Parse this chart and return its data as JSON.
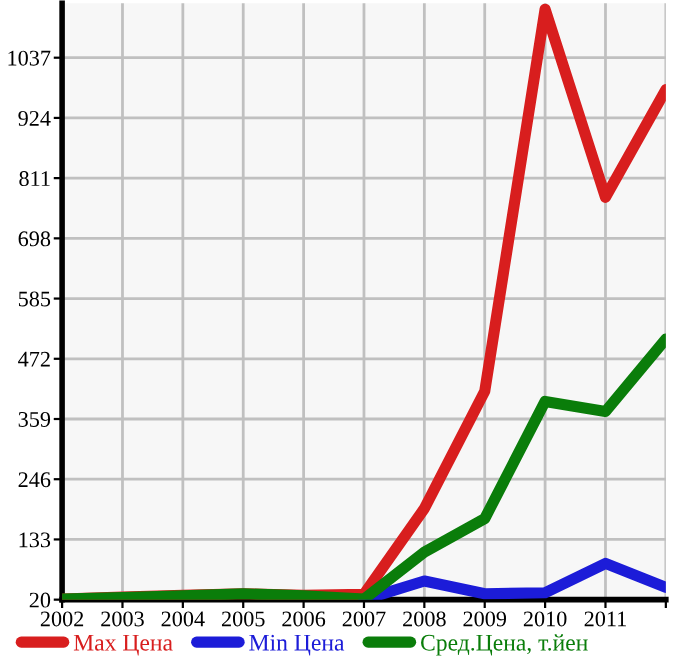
{
  "chart_data": {
    "type": "line",
    "x": [
      2002,
      2003,
      2004,
      2005,
      2006,
      2007,
      2008,
      2009,
      2010,
      2011,
      2012
    ],
    "series": [
      {
        "name": "Max Цена",
        "color": "#d81e1e",
        "values": [
          21,
          25,
          28,
          31,
          28,
          30,
          191,
          411,
          1128,
          775,
          977
        ]
      },
      {
        "name": "Min Цена",
        "color": "#1c1cd8",
        "values": [
          null,
          null,
          null,
          null,
          null,
          20,
          55,
          31,
          33,
          88,
          43
        ]
      },
      {
        "name": "Сред.Цена, т.йен",
        "color": "#0a7d0a",
        "values": [
          21,
          24,
          27,
          31,
          27,
          21,
          109,
          172,
          392,
          373,
          509
        ]
      }
    ],
    "xlim": [
      2002,
      2012
    ],
    "xticks": [
      2002,
      2003,
      2004,
      2005,
      2006,
      2007,
      2008,
      2009,
      2010,
      2011,
      {
        "value": 2012,
        "label": null
      }
    ],
    "ylim": [
      20,
      1139
    ],
    "yticks": [
      20,
      133,
      246,
      359,
      472,
      585,
      698,
      811,
      924,
      1037
    ],
    "grid": true,
    "legend": "bottom",
    "marker": "none",
    "line_style": "solid"
  }
}
